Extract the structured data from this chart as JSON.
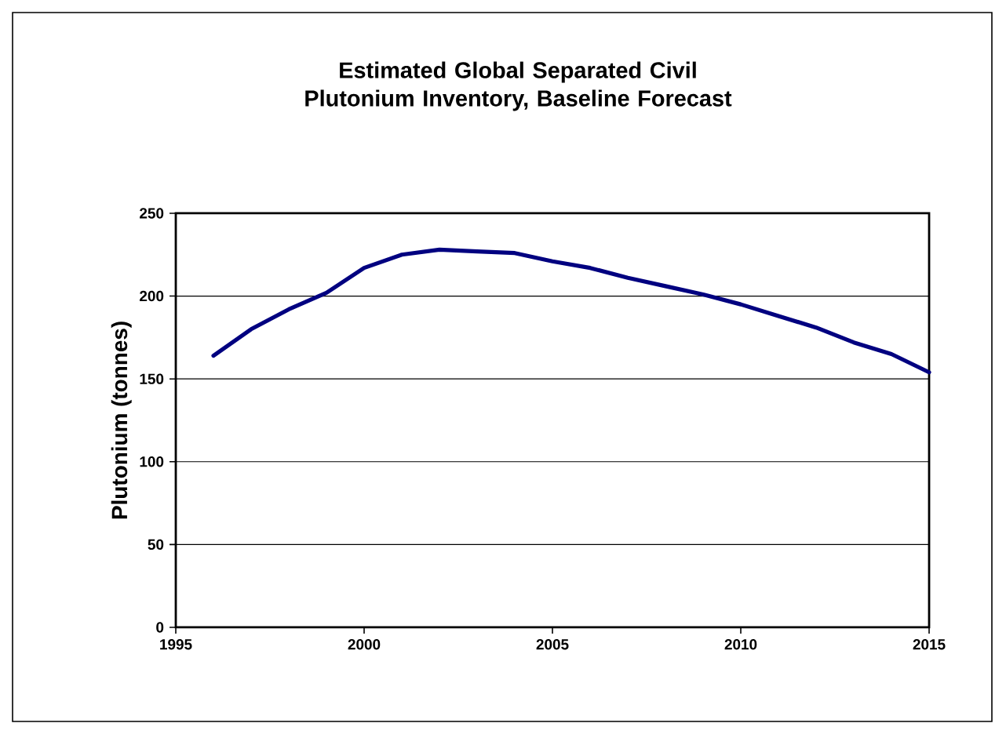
{
  "chart_data": {
    "type": "line",
    "title": "Estimated Global Separated Civil Plutonium Inventory, Baseline Forecast",
    "ylabel": "Plutonium (tonnes)",
    "x": [
      1996,
      1997,
      1998,
      1999,
      2000,
      2001,
      2002,
      2003,
      2004,
      2005,
      2006,
      2007,
      2008,
      2009,
      2010,
      2011,
      2012,
      2013,
      2014,
      2015
    ],
    "series": [
      {
        "color": "#000080",
        "values": [
          164,
          180,
          192,
          202,
          217,
          225,
          228,
          227,
          226,
          221,
          217,
          211,
          206,
          201,
          195,
          188,
          181,
          172,
          165,
          154
        ]
      }
    ],
    "xlim": [
      1995,
      2015
    ],
    "xticks": [
      1995,
      2000,
      2005,
      2010,
      2015
    ],
    "ylim": [
      0,
      250
    ],
    "yticks": [
      0,
      50,
      100,
      150,
      200,
      250
    ],
    "grid": "y",
    "marker": "none",
    "line_style": "solid"
  }
}
